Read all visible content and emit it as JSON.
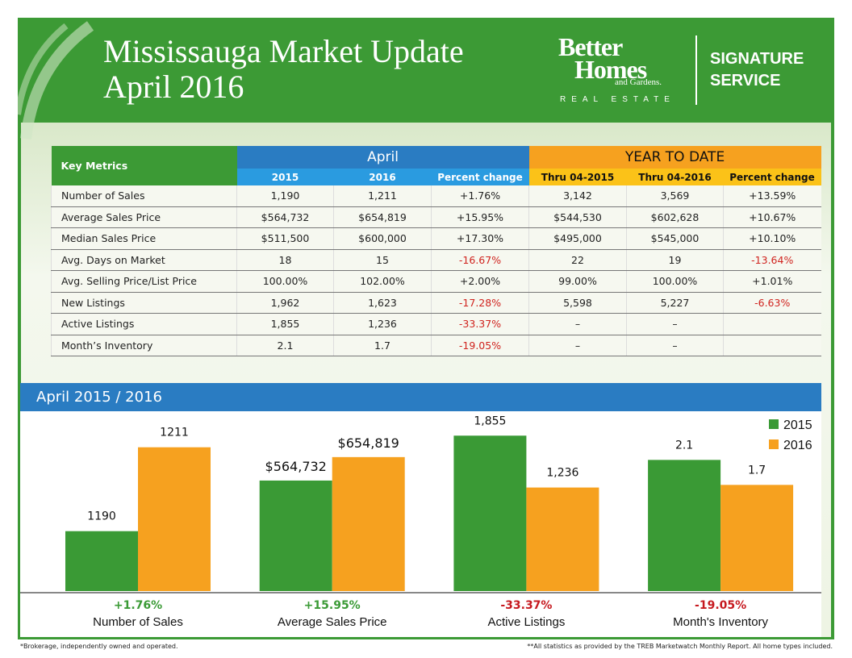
{
  "header": {
    "title_lines": [
      "Mississauga Market Update",
      "April  2016"
    ],
    "brand": {
      "line1": "Better",
      "line2": "Homes",
      "line3": "and Gardens.",
      "line4": "REAL ESTATE",
      "service1": "SIGNATURE",
      "service2": "SERVICE"
    }
  },
  "table": {
    "corner": "Key Metrics",
    "groups": [
      "April",
      "YEAR TO DATE"
    ],
    "columns": [
      "2015",
      "2016",
      "Percent change",
      "Thru 04-2015",
      "Thru 04-2016",
      "Percent change"
    ],
    "rows": [
      [
        "Number of Sales",
        "1,190",
        "1,211",
        "+1.76%",
        "3,142",
        "3,569",
        "+13.59%"
      ],
      [
        "Average Sales Price",
        "$564,732",
        "$654,819",
        "+15.95%",
        "$544,530",
        "$602,628",
        "+10.67%"
      ],
      [
        "Median Sales Price",
        "$511,500",
        "$600,000",
        "+17.30%",
        "$495,000",
        "$545,000",
        "+10.10%"
      ],
      [
        "Avg. Days on Market",
        "18",
        "15",
        "-16.67%",
        "22",
        "19",
        "-13.64%"
      ],
      [
        "Avg. Selling Price/List Price",
        "100.00%",
        "102.00%",
        "+2.00%",
        "99.00%",
        "100.00%",
        "+1.01%"
      ],
      [
        "New Listings",
        "1,962",
        "1,623",
        "-17.28%",
        "5,598",
        "5,227",
        "-6.63%"
      ],
      [
        "Active Listings",
        "1,855",
        "1,236",
        "-33.37%",
        "–",
        "–",
        null
      ],
      [
        "Month’s Inventory",
        "2.1",
        "1.7",
        "-19.05%",
        "–",
        "–",
        null
      ]
    ]
  },
  "chart_data": {
    "type": "bar",
    "title": "April  2015 / 2016",
    "categories": [
      "Number of Sales",
      "Average Sales Price",
      "Active Listings",
      "Month's Inventory"
    ],
    "changes": [
      "+1.76%",
      "+15.95%",
      "-33.37%",
      "-19.05%"
    ],
    "ylims": [
      [
        1175,
        1218
      ],
      [
        140000,
        800000
      ],
      [
        0,
        2050
      ],
      [
        0,
        2.75
      ]
    ],
    "series": [
      {
        "name": "2015",
        "color": "#3a9a35",
        "values": [
          1190,
          564732,
          1855,
          2.1
        ],
        "value_labels": [
          "1190",
          "$564,732",
          "1,855",
          "2.1"
        ]
      },
      {
        "name": "2016",
        "color": "#f6a11f",
        "values": [
          1211,
          654819,
          1236,
          1.7
        ],
        "value_labels": [
          "1211",
          "$654,819",
          "1,236",
          "1.7"
        ]
      }
    ],
    "legend": "top-right"
  },
  "footer": {
    "left": "*Brokerage, independently owned and operated.",
    "right": "**All statistics as provided by the TREB Marketwatch Monthly Report. All home types included."
  }
}
